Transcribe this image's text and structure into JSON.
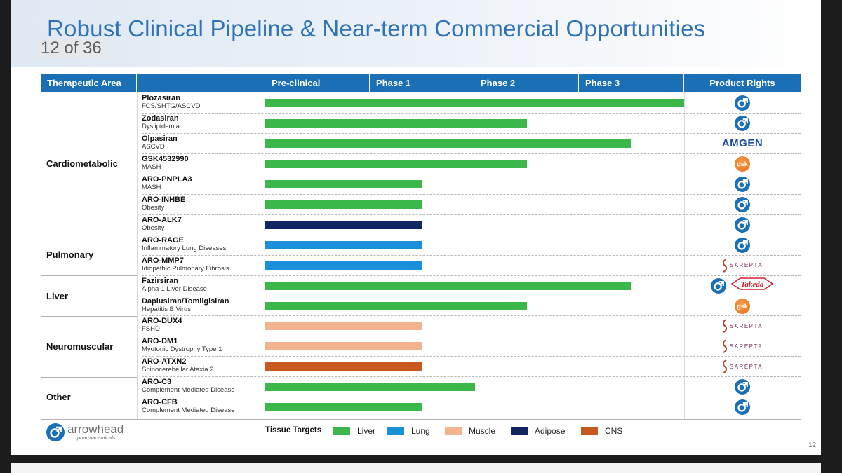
{
  "title": "Robust Clinical Pipeline & Near-term Commercial Opportunities",
  "page_counter": "12 of 36",
  "slide_number": "12",
  "header": {
    "therapeutic_area": "Therapeutic Area",
    "preclinical": "Pre-clinical",
    "phase1": "Phase 1",
    "phase2": "Phase 2",
    "phase3": "Phase 3",
    "product_rights": "Product Rights"
  },
  "areas": {
    "cardiometabolic": "Cardiometabolic",
    "pulmonary": "Pulmonary",
    "liver": "Liver",
    "neuromuscular": "Neuromuscular",
    "other": "Other"
  },
  "colors": {
    "liver": "#3cb84a",
    "lung": "#1a8fda",
    "muscle": "#f3b38e",
    "adipose": "#0f2660",
    "cns": "#c9581e",
    "header": "#1b6fb5"
  },
  "programs": [
    {
      "name": "Plozasiran",
      "indication": "FCS/SHTG/ASCVD",
      "area": "Cardiometabolic",
      "tissue": "liver",
      "progress": 1.0,
      "rights": [
        "arrowhead"
      ]
    },
    {
      "name": "Zodasiran",
      "indication": "Dyslipidemia",
      "area": "Cardiometabolic",
      "tissue": "liver",
      "progress": 0.625,
      "rights": [
        "arrowhead"
      ]
    },
    {
      "name": "Olpasiran",
      "indication": "ASCVD",
      "area": "Cardiometabolic",
      "tissue": "liver",
      "progress": 0.875,
      "rights": [
        "amgen"
      ]
    },
    {
      "name": "GSK4532990",
      "indication": "MASH",
      "area": "Cardiometabolic",
      "tissue": "liver",
      "progress": 0.625,
      "rights": [
        "gsk"
      ]
    },
    {
      "name": "ARO-PNPLA3",
      "indication": "MASH",
      "area": "Cardiometabolic",
      "tissue": "liver",
      "progress": 0.375,
      "rights": [
        "arrowhead"
      ]
    },
    {
      "name": "ARO-INHBE",
      "indication": "Obesity",
      "area": "Cardiometabolic",
      "tissue": "liver",
      "progress": 0.375,
      "rights": [
        "arrowhead"
      ]
    },
    {
      "name": "ARO-ALK7",
      "indication": "Obesity",
      "area": "Cardiometabolic",
      "tissue": "adipose",
      "progress": 0.375,
      "rights": [
        "arrowhead"
      ]
    },
    {
      "name": "ARO-RAGE",
      "indication": "Inflammatory Lung Diseases",
      "area": "Pulmonary",
      "tissue": "lung",
      "progress": 0.375,
      "rights": [
        "arrowhead"
      ]
    },
    {
      "name": "ARO-MMP7",
      "indication": "Idiopathic Pulmonary Fibrosis",
      "area": "Pulmonary",
      "tissue": "lung",
      "progress": 0.375,
      "rights": [
        "sarepta"
      ]
    },
    {
      "name": "Fazirsiran",
      "indication": "Alpha-1 Liver Disease",
      "area": "Liver",
      "tissue": "liver",
      "progress": 0.875,
      "rights": [
        "arrowhead",
        "takeda"
      ]
    },
    {
      "name": "Daplusiran/Tomligisiran",
      "indication": "Hepatitis B Virus",
      "area": "Liver",
      "tissue": "liver",
      "progress": 0.625,
      "rights": [
        "gsk"
      ]
    },
    {
      "name": "ARO-DUX4",
      "indication": "FSHD",
      "area": "Neuromuscular",
      "tissue": "muscle",
      "progress": 0.375,
      "rights": [
        "sarepta"
      ]
    },
    {
      "name": "ARO-DM1",
      "indication": "Myotonic Dystrophy Type 1",
      "area": "Neuromuscular",
      "tissue": "muscle",
      "progress": 0.375,
      "rights": [
        "sarepta"
      ]
    },
    {
      "name": "ARO-ATXN2",
      "indication": "Spinocerebellar Ataxia 2",
      "area": "Neuromuscular",
      "tissue": "cns",
      "progress": 0.375,
      "rights": [
        "sarepta"
      ]
    },
    {
      "name": "ARO-C3",
      "indication": "Complement Mediated Disease",
      "area": "Other",
      "tissue": "liver",
      "progress": 0.5,
      "rights": [
        "arrowhead"
      ]
    },
    {
      "name": "ARO-CFB",
      "indication": "Complement Mediated Disease",
      "area": "Other",
      "tissue": "liver",
      "progress": 0.375,
      "rights": [
        "arrowhead"
      ]
    }
  ],
  "partner_labels": {
    "amgen": "AMGEN",
    "gsk": "gsk",
    "sarepta": "SAREPTA",
    "takeda": "Takeda"
  },
  "legend": {
    "title": "Tissue Targets",
    "liver": "Liver",
    "lung": "Lung",
    "muscle": "Muscle",
    "adipose": "Adipose",
    "cns": "CNS"
  },
  "brand": {
    "name": "arrowhead",
    "subtitle": "pharmaceuticals"
  }
}
